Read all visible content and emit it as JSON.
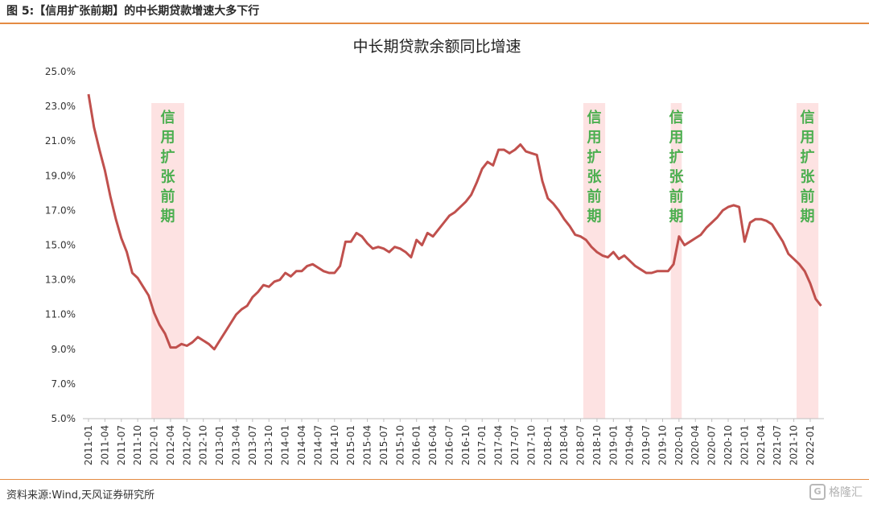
{
  "figure_label": "图 5:【信用扩张前期】的中长期贷款增速大多下行",
  "footer": {
    "source": "资料来源:Wind,天风证券研究所",
    "watermark": "格隆汇",
    "watermark_logo": "G"
  },
  "colors": {
    "line": "#c0504d",
    "band": "#fde2e2",
    "band_text": "#4caf50",
    "rule": "#e48b42"
  },
  "chart_data": {
    "type": "line",
    "title": "中长期贷款余额同比增速",
    "ylim": [
      5.0,
      25.0
    ],
    "y_ticks": [
      "5.0%",
      "7.0%",
      "9.0%",
      "11.0%",
      "13.0%",
      "15.0%",
      "17.0%",
      "19.0%",
      "21.0%",
      "23.0%",
      "25.0%"
    ],
    "x_ticks": [
      "2011-01",
      "2011-04",
      "2011-07",
      "2011-10",
      "2012-01",
      "2012-04",
      "2012-07",
      "2012-10",
      "2013-01",
      "2013-04",
      "2013-07",
      "2013-10",
      "2014-01",
      "2014-04",
      "2014-07",
      "2014-10",
      "2015-01",
      "2015-04",
      "2015-07",
      "2015-10",
      "2016-01",
      "2016-04",
      "2016-07",
      "2016-10",
      "2017-01",
      "2017-04",
      "2017-07",
      "2017-10",
      "2018-01",
      "2018-04",
      "2018-07",
      "2018-10",
      "2019-01",
      "2019-04",
      "2019-07",
      "2019-10",
      "2020-01",
      "2020-04",
      "2020-07",
      "2020-10",
      "2021-01",
      "2021-04",
      "2021-07",
      "2021-10",
      "2022-01"
    ],
    "x_start": "2011-01",
    "grid": false,
    "legend": "none",
    "shaded_periods": [
      {
        "label": "信用扩张前期",
        "start": "2012-01",
        "end": "2012-06"
      },
      {
        "label": "信用扩张前期",
        "start": "2018-08",
        "end": "2018-11"
      },
      {
        "label": "信用扩张前期",
        "start": "2019-12",
        "end": "2020-01"
      },
      {
        "label": "信用扩张前期",
        "start": "2021-11",
        "end": "2022-02"
      }
    ],
    "series": [
      {
        "values": [
          23.7,
          21.8,
          20.5,
          19.3,
          17.8,
          16.5,
          15.4,
          14.6,
          13.4,
          13.1,
          12.6,
          12.1,
          11.1,
          10.4,
          9.9,
          9.1,
          9.1,
          9.3,
          9.2,
          9.4,
          9.7,
          9.5,
          9.3,
          9.0,
          9.5,
          10.0,
          10.5,
          11.0,
          11.3,
          11.5,
          12.0,
          12.3,
          12.7,
          12.6,
          12.9,
          13.0,
          13.4,
          13.2,
          13.5,
          13.5,
          13.8,
          13.9,
          13.7,
          13.5,
          13.4,
          13.4,
          13.8,
          15.2,
          15.2,
          15.7,
          15.5,
          15.1,
          14.8,
          14.9,
          14.8,
          14.6,
          14.9,
          14.8,
          14.6,
          14.3,
          15.3,
          15.0,
          15.7,
          15.5,
          15.9,
          16.3,
          16.7,
          16.9,
          17.2,
          17.5,
          17.9,
          18.6,
          19.4,
          19.8,
          19.6,
          20.5,
          20.5,
          20.3,
          20.5,
          20.8,
          20.4,
          20.3,
          20.2,
          18.7,
          17.7,
          17.4,
          17.0,
          16.5,
          16.1,
          15.6,
          15.5,
          15.3,
          14.9,
          14.6,
          14.4,
          14.3,
          14.6,
          14.2,
          14.4,
          14.1,
          13.8,
          13.6,
          13.4,
          13.4,
          13.5,
          13.5,
          13.5,
          13.9,
          15.5,
          15.0,
          15.2,
          15.4,
          15.6,
          16.0,
          16.3,
          16.6,
          17.0,
          17.2,
          17.3,
          17.2,
          15.2,
          16.3,
          16.5,
          16.5,
          16.4,
          16.2,
          15.7,
          15.2,
          14.5,
          14.2,
          13.9,
          13.5,
          12.8,
          11.9,
          11.5
        ]
      }
    ]
  }
}
